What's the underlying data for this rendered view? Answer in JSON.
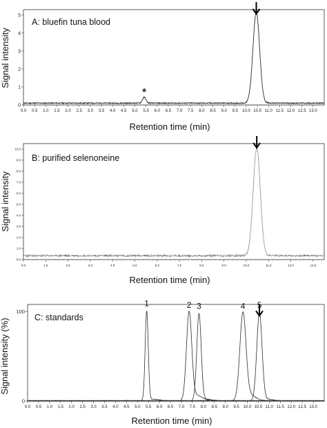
{
  "chart_data": [
    {
      "type": "line",
      "panel_label": "A: bluefin tuna blood",
      "xlabel": "Retention time (min)",
      "ylabel": "Signal intensity",
      "xlim": [
        0,
        13.5
      ],
      "x_ticks": [
        "0.0",
        "0.5",
        "1.0",
        "1.5",
        "2.0",
        "2.5",
        "3.0",
        "3.5",
        "4.0",
        "4.5",
        "5.0",
        "5.5",
        "6.0",
        "6.5",
        "7.0",
        "7.5",
        "8.0",
        "8.5",
        "9.0",
        "9.5",
        "10.0",
        "10.5",
        "11.0",
        "11.5",
        "12.0",
        "12.5",
        "13.0"
      ],
      "y_ticks": [
        "0",
        "1",
        "2",
        "3",
        "4",
        "5"
      ],
      "ylim": [
        0,
        5.3
      ],
      "baseline": 0.1,
      "peaks": [
        {
          "x": 5.42,
          "height": 0.32,
          "width": 0.08
        },
        {
          "x": 10.45,
          "height": 5.05,
          "width": 0.15
        }
      ],
      "annotations": [
        {
          "text": "*",
          "x": 5.42
        },
        {
          "text": "↓",
          "x": 10.45
        }
      ]
    },
    {
      "type": "line",
      "panel_label": "B: purified selenoneine",
      "xlabel": "Retention time (min)",
      "ylabel": "Signal intensity",
      "xlim": [
        0,
        13.5
      ],
      "x_ticks": [
        "0.0",
        "1.0",
        "2.0",
        "3.0",
        "4.0",
        "5.0",
        "6.0",
        "7.0",
        "8.0",
        "9.0",
        "10.0",
        "11.0",
        "12.0",
        "13.0"
      ],
      "y_ticks": [
        "0.0",
        "1.0",
        "2.0",
        "3.0",
        "4.0",
        "5.0",
        "6.0",
        "7.0",
        "8.0",
        "9.0",
        "10.0"
      ],
      "ylim": [
        0,
        10.5
      ],
      "baseline": 0.35,
      "peaks": [
        {
          "x": 10.47,
          "height": 9.75,
          "width": 0.16
        }
      ],
      "annotations": [
        {
          "text": "↓",
          "x": 10.47
        }
      ]
    },
    {
      "type": "line",
      "panel_label": "C: standards",
      "xlabel": "Retention time (min)",
      "ylabel": "Signal intensity (%)",
      "xlim": [
        0,
        13.5
      ],
      "x_ticks": [
        "0.0",
        "0.5",
        "1.0",
        "1.5",
        "2.0",
        "2.5",
        "3.0",
        "3.5",
        "4.0",
        "4.5",
        "5.0",
        "5.5",
        "6.0",
        "6.5",
        "7.0",
        "7.5",
        "8.0",
        "8.5",
        "9.0",
        "9.5",
        "10.0",
        "10.5",
        "11.0",
        "11.5",
        "12.0",
        "12.5",
        "13.0"
      ],
      "y_ticks": [
        "0",
        "100"
      ],
      "ylim": [
        0,
        108
      ],
      "baseline": 0,
      "peaks": [
        {
          "label": "1",
          "x": 5.42,
          "height": 100,
          "width": 0.07
        },
        {
          "label": "2",
          "x": 7.35,
          "height": 98,
          "width": 0.12
        },
        {
          "label": "3",
          "x": 7.8,
          "height": 97,
          "width": 0.1
        },
        {
          "label": "4",
          "x": 9.8,
          "height": 97,
          "width": 0.14
        },
        {
          "label": "5",
          "x": 10.55,
          "height": 98,
          "width": 0.12
        }
      ],
      "annotations": [
        {
          "text": "↓",
          "x": 10.55
        }
      ]
    }
  ]
}
